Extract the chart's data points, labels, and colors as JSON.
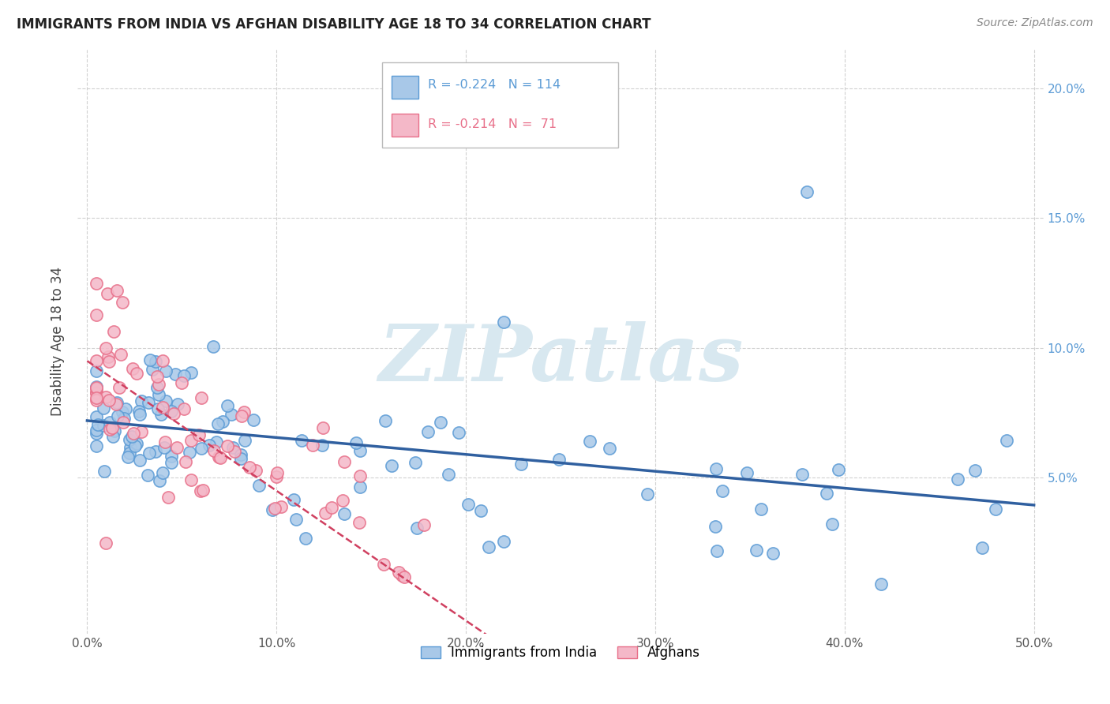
{
  "title": "IMMIGRANTS FROM INDIA VS AFGHAN DISABILITY AGE 18 TO 34 CORRELATION CHART",
  "source": "Source: ZipAtlas.com",
  "ylabel": "Disability Age 18 to 34",
  "xlim": [
    -0.005,
    0.505
  ],
  "ylim": [
    -0.01,
    0.215
  ],
  "xtick_labels": [
    "0.0%",
    "10.0%",
    "20.0%",
    "30.0%",
    "40.0%",
    "50.0%"
  ],
  "xtick_vals": [
    0.0,
    0.1,
    0.2,
    0.3,
    0.4,
    0.5
  ],
  "ytick_labels": [
    "5.0%",
    "10.0%",
    "15.0%",
    "20.0%"
  ],
  "ytick_vals": [
    0.05,
    0.1,
    0.15,
    0.2
  ],
  "india_R": -0.224,
  "india_N": 114,
  "afghan_R": -0.214,
  "afghan_N": 71,
  "india_color": "#a8c8e8",
  "india_edge_color": "#5b9bd5",
  "afghan_color": "#f4b8c8",
  "afghan_edge_color": "#e8708a",
  "india_line_color": "#3060a0",
  "afghan_line_color": "#d04060",
  "watermark_text": "ZIPatlas",
  "watermark_color": "#d8e8f0",
  "legend_india_label": "Immigrants from India",
  "legend_afghan_label": "Afghans",
  "background_color": "#ffffff",
  "grid_color": "#cccccc",
  "title_color": "#222222",
  "right_tick_color": "#5b9bd5",
  "india_line_y_intercept": 0.072,
  "india_line_slope": -0.065,
  "afghan_line_y_intercept": 0.095,
  "afghan_line_slope": -0.5
}
